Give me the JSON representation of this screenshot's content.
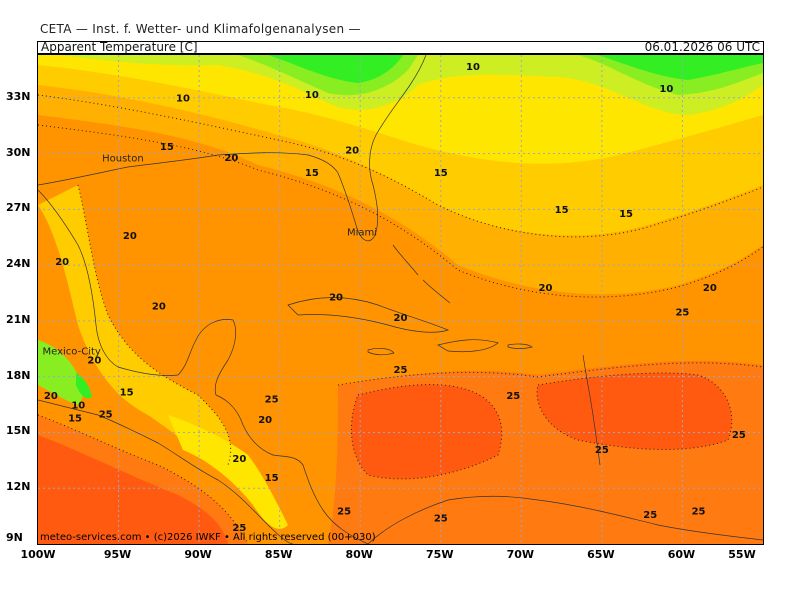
{
  "header": {
    "title": "CETA — Inst. f. Wetter- und Klimafolgenanalysen —",
    "parameter": "Apparent Temperature [C]",
    "datetime": "06.01.2026 06 UTC"
  },
  "credit": "meteo-services.com • (c)2026 IWKF • All rights reserved (00+030)",
  "axes": {
    "lat_labels": [
      "33N",
      "30N",
      "27N",
      "24N",
      "21N",
      "18N",
      "15N",
      "12N",
      "9N"
    ],
    "lon_labels": [
      "100W",
      "95W",
      "90W",
      "85W",
      "80W",
      "75W",
      "70W",
      "65W",
      "60W",
      "55W"
    ]
  },
  "cities": [
    {
      "name": "Houston",
      "lon": -95.4,
      "lat": 29.8
    },
    {
      "name": "Miami",
      "lon": -80.2,
      "lat": 25.8
    },
    {
      "name": "Mexico-City",
      "lon": -99.1,
      "lat": 19.4
    }
  ],
  "contour_labels": [
    {
      "text": "10",
      "lon": -91.0,
      "lat": 32.8
    },
    {
      "text": "10",
      "lon": -83.0,
      "lat": 33.0
    },
    {
      "text": "10",
      "lon": -73.0,
      "lat": 34.5
    },
    {
      "text": "10",
      "lon": -61.0,
      "lat": 33.3
    },
    {
      "text": "15",
      "lon": -92.0,
      "lat": 30.2
    },
    {
      "text": "20",
      "lon": -88.0,
      "lat": 29.6
    },
    {
      "text": "15",
      "lon": -83.0,
      "lat": 28.8
    },
    {
      "text": "20",
      "lon": -80.5,
      "lat": 30.0
    },
    {
      "text": "15",
      "lon": -75.0,
      "lat": 28.8
    },
    {
      "text": "15",
      "lon": -67.5,
      "lat": 26.8
    },
    {
      "text": "15",
      "lon": -63.5,
      "lat": 26.6
    },
    {
      "text": "20",
      "lon": -94.3,
      "lat": 25.4
    },
    {
      "text": "20",
      "lon": -98.5,
      "lat": 24.0
    },
    {
      "text": "20",
      "lon": -92.5,
      "lat": 21.6
    },
    {
      "text": "20",
      "lon": -81.5,
      "lat": 22.1
    },
    {
      "text": "20",
      "lon": -77.5,
      "lat": 21.0
    },
    {
      "text": "20",
      "lon": -68.5,
      "lat": 22.6
    },
    {
      "text": "20",
      "lon": -58.3,
      "lat": 22.6
    },
    {
      "text": "25",
      "lon": -60.0,
      "lat": 21.3
    },
    {
      "text": "20",
      "lon": -96.5,
      "lat": 18.7
    },
    {
      "text": "25",
      "lon": -77.5,
      "lat": 18.2
    },
    {
      "text": "20",
      "lon": -99.2,
      "lat": 16.8
    },
    {
      "text": "15",
      "lon": -94.5,
      "lat": 17.0
    },
    {
      "text": "10",
      "lon": -97.5,
      "lat": 16.3
    },
    {
      "text": "15",
      "lon": -97.7,
      "lat": 15.6
    },
    {
      "text": "25",
      "lon": -95.8,
      "lat": 15.8
    },
    {
      "text": "25",
      "lon": -85.5,
      "lat": 16.6
    },
    {
      "text": "20",
      "lon": -85.9,
      "lat": 15.5
    },
    {
      "text": "25",
      "lon": -70.5,
      "lat": 16.8
    },
    {
      "text": "25",
      "lon": -65.0,
      "lat": 13.9
    },
    {
      "text": "25",
      "lon": -56.5,
      "lat": 14.7
    },
    {
      "text": "20",
      "lon": -87.5,
      "lat": 13.4
    },
    {
      "text": "15",
      "lon": -85.5,
      "lat": 12.4
    },
    {
      "text": "25",
      "lon": -81.0,
      "lat": 10.6
    },
    {
      "text": "25",
      "lon": -75.0,
      "lat": 10.2
    },
    {
      "text": "25",
      "lon": -62.0,
      "lat": 10.4
    },
    {
      "text": "25",
      "lon": -59.0,
      "lat": 10.6
    },
    {
      "text": "25",
      "lon": -87.5,
      "lat": 9.7
    }
  ],
  "colors": {
    "t_lt10": "#33ee22",
    "t_10_12": "#88ee22",
    "t_12_15": "#ccee22",
    "t_15_17": "#ffe600",
    "t_17_20": "#ffcc00",
    "t_20_22": "#ffb000",
    "t_22_25": "#ff9400",
    "t_25_27": "#ff7a10",
    "t_gt27": "#ff5a10"
  }
}
